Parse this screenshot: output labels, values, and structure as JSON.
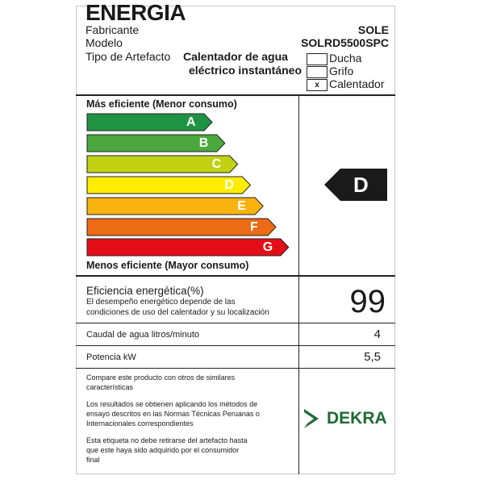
{
  "header": {
    "title": "ENERGIA",
    "fabricante_label": "Fabricante",
    "fabricante_value": "SOLE",
    "modelo_label": "Modelo",
    "modelo_value": "SOLRD5500SPC",
    "tipo_label": "Tipo de Artefacto",
    "tipo_value_line1": "Calentador de agua",
    "tipo_value_line2": "eléctrico instantáneo",
    "options": [
      {
        "label": "Ducha",
        "mark": "",
        "checked": false
      },
      {
        "label": "Grifo",
        "mark": "",
        "checked": false
      },
      {
        "label": "Calentador",
        "mark": "x",
        "checked": true
      }
    ]
  },
  "scale": {
    "top_label": "Más eficiente (Menor consumo)",
    "bottom_label": "Menos eficiente (Mayor consumo)",
    "classes": [
      {
        "letter": "A",
        "color": "#1e9443"
      },
      {
        "letter": "B",
        "color": "#4aa83c"
      },
      {
        "letter": "C",
        "color": "#c2d213"
      },
      {
        "letter": "D",
        "color": "#ffec00"
      },
      {
        "letter": "E",
        "color": "#f9b30f"
      },
      {
        "letter": "F",
        "color": "#ec6b14"
      },
      {
        "letter": "G",
        "color": "#e30e17"
      }
    ],
    "rating": "D",
    "rating_color": "#1a1a1a"
  },
  "specs": {
    "efficiency_label": "Eficiencia energética(%)",
    "efficiency_note_line1": "El desempeño energético depende de las",
    "efficiency_note_line2": "condiciones de uso del calentador y su localización",
    "efficiency_value": "99",
    "flow_label": "Caudal de agua litros/minuto",
    "flow_value": "4",
    "power_label": "Potencia kW",
    "power_value": "5,5"
  },
  "notes": {
    "note1_line1": "Compare este producto con otros de similares",
    "note1_line2": "características",
    "note2_line1": "Los resultados se obtienen  aplicando los métodos de",
    "note2_line2": "ensayo descritos en las Normas Técnicas Peruanas o",
    "note2_line3": "Internacionales correspondientes",
    "note3_line1": "Esta etiqueta no debe retirarse del artefacto hasta",
    "note3_line2": "que este haya sido adquirido por el consumidor",
    "note3_line3": "final"
  },
  "certifier": {
    "logo_text": "DEKRA",
    "color": "#1e6b35"
  }
}
